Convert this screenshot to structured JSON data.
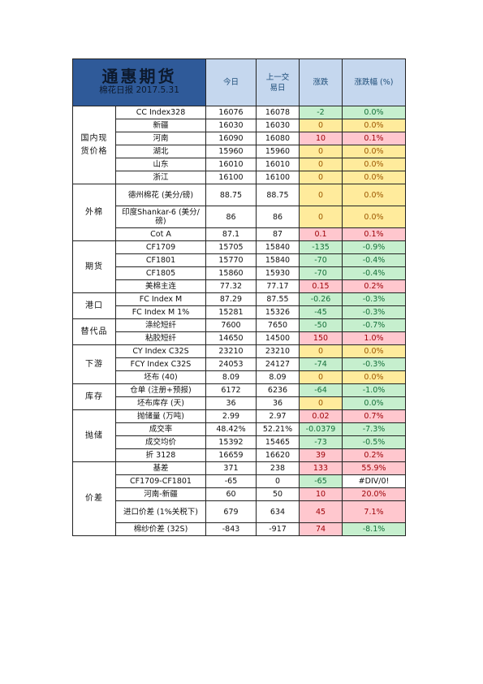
{
  "header": {
    "title": "通惠期货",
    "subtitle": "棉花日报 2017.5.31",
    "col_today": "今日",
    "col_prev": "上一交易日",
    "col_change": "涨跌",
    "col_pct": "涨跌幅 (%)"
  },
  "groups": [
    {
      "category": "国内现货价格",
      "rows": [
        {
          "item": "CC Index328",
          "today": "16076",
          "prev": "16078",
          "change": "-2",
          "pct": "0.0%",
          "change_color": "green",
          "pct_color": "green"
        },
        {
          "item": "新疆",
          "today": "16030",
          "prev": "16030",
          "change": "0",
          "pct": "0.0%",
          "change_color": "yellow",
          "pct_color": "yellow"
        },
        {
          "item": "河南",
          "today": "16090",
          "prev": "16080",
          "change": "10",
          "pct": "0.1%",
          "change_color": "red",
          "pct_color": "red"
        },
        {
          "item": "湖北",
          "today": "15960",
          "prev": "15960",
          "change": "0",
          "pct": "0.0%",
          "change_color": "yellow",
          "pct_color": "yellow"
        },
        {
          "item": "山东",
          "today": "16010",
          "prev": "16010",
          "change": "0",
          "pct": "0.0%",
          "change_color": "yellow",
          "pct_color": "yellow"
        },
        {
          "item": "浙江",
          "today": "16100",
          "prev": "16100",
          "change": "0",
          "pct": "0.0%",
          "change_color": "yellow",
          "pct_color": "yellow"
        }
      ]
    },
    {
      "category": "外棉",
      "rows": [
        {
          "item": "德州棉花 (美分/磅)",
          "today": "88.75",
          "prev": "88.75",
          "change": "0",
          "pct": "0.0%",
          "change_color": "yellow",
          "pct_color": "yellow",
          "tall": true
        },
        {
          "item": "印度Shankar-6 (美分/磅)",
          "today": "86",
          "prev": "86",
          "change": "0",
          "pct": "0.0%",
          "change_color": "yellow",
          "pct_color": "yellow",
          "tall": true
        },
        {
          "item": "Cot A",
          "today": "87.1",
          "prev": "87",
          "change": "0.1",
          "pct": "0.1%",
          "change_color": "red",
          "pct_color": "red"
        }
      ]
    },
    {
      "category": "期货",
      "rows": [
        {
          "item": "CF1709",
          "today": "15705",
          "prev": "15840",
          "change": "-135",
          "pct": "-0.9%",
          "change_color": "green",
          "pct_color": "green"
        },
        {
          "item": "CF1801",
          "today": "15770",
          "prev": "15840",
          "change": "-70",
          "pct": "-0.4%",
          "change_color": "green",
          "pct_color": "green"
        },
        {
          "item": "CF1805",
          "today": "15860",
          "prev": "15930",
          "change": "-70",
          "pct": "-0.4%",
          "change_color": "green",
          "pct_color": "green"
        },
        {
          "item": "美棉主连",
          "today": "77.32",
          "prev": "77.17",
          "change": "0.15",
          "pct": "0.2%",
          "change_color": "red",
          "pct_color": "red"
        }
      ]
    },
    {
      "category": "港口",
      "rows": [
        {
          "item": "FC Index M",
          "today": "87.29",
          "prev": "87.55",
          "change": "-0.26",
          "pct": "-0.3%",
          "change_color": "green",
          "pct_color": "green"
        },
        {
          "item": "FC Index M 1%",
          "today": "15281",
          "prev": "15326",
          "change": "-45",
          "pct": "-0.3%",
          "change_color": "green",
          "pct_color": "green"
        }
      ]
    },
    {
      "category": "替代品",
      "rows": [
        {
          "item": "涤纶短纤",
          "today": "7600",
          "prev": "7650",
          "change": "-50",
          "pct": "-0.7%",
          "change_color": "green",
          "pct_color": "green"
        },
        {
          "item": "粘胶短纤",
          "today": "14650",
          "prev": "14500",
          "change": "150",
          "pct": "1.0%",
          "change_color": "red",
          "pct_color": "red"
        }
      ]
    },
    {
      "category": "下游",
      "rows": [
        {
          "item": "CY Index C32S",
          "today": "23210",
          "prev": "23210",
          "change": "0",
          "pct": "0.0%",
          "change_color": "yellow",
          "pct_color": "yellow"
        },
        {
          "item": "FCY Index C32S",
          "today": "24053",
          "prev": "24127",
          "change": "-74",
          "pct": "-0.3%",
          "change_color": "green",
          "pct_color": "green"
        },
        {
          "item": "坯布 (40)",
          "today": "8.09",
          "prev": "8.09",
          "change": "0",
          "pct": "0.0%",
          "change_color": "yellow",
          "pct_color": "yellow"
        }
      ]
    },
    {
      "category": "库存",
      "rows": [
        {
          "item": "仓单 (注册+预报)",
          "today": "6172",
          "prev": "6236",
          "change": "-64",
          "pct": "-1.0%",
          "change_color": "green",
          "pct_color": "green"
        },
        {
          "item": "坯布库存 (天)",
          "today": "36",
          "prev": "36",
          "change": "0",
          "pct": "0.0%",
          "change_color": "yellow",
          "pct_color": "green"
        }
      ]
    },
    {
      "category": "抛储",
      "rows": [
        {
          "item": "抛储量 (万吨)",
          "today": "2.99",
          "prev": "2.97",
          "change": "0.02",
          "pct": "0.7%",
          "change_color": "red",
          "pct_color": "red"
        },
        {
          "item": "成交率",
          "today": "48.42%",
          "prev": "52.21%",
          "change": "-0.0379",
          "pct": "-7.3%",
          "change_color": "green",
          "pct_color": "green"
        },
        {
          "item": "成交均价",
          "today": "15392",
          "prev": "15465",
          "change": "-73",
          "pct": "-0.5%",
          "change_color": "green",
          "pct_color": "green"
        },
        {
          "item": "折 3128",
          "today": "16659",
          "prev": "16620",
          "change": "39",
          "pct": "0.2%",
          "change_color": "red",
          "pct_color": "red"
        }
      ]
    },
    {
      "category": "价差",
      "rows": [
        {
          "item": "基差",
          "today": "371",
          "prev": "238",
          "change": "133",
          "pct": "55.9%",
          "change_color": "red",
          "pct_color": "red"
        },
        {
          "item": "CF1709-CF1801",
          "today": "-65",
          "prev": "0",
          "change": "-65",
          "pct": "#DIV/0!",
          "change_color": "green",
          "pct_color": "none"
        },
        {
          "item": "河南-新疆",
          "today": "60",
          "prev": "50",
          "change": "10",
          "pct": "20.0%",
          "change_color": "red",
          "pct_color": "red"
        },
        {
          "item": "进口价差 (1%关税下)",
          "today": "679",
          "prev": "634",
          "change": "45",
          "pct": "7.1%",
          "change_color": "red",
          "pct_color": "red",
          "tall": true
        },
        {
          "item": "棉纱价差 (32S)",
          "today": "-843",
          "prev": "-917",
          "change": "74",
          "pct": "-8.1%",
          "change_color": "red",
          "pct_color": "green"
        }
      ]
    }
  ]
}
